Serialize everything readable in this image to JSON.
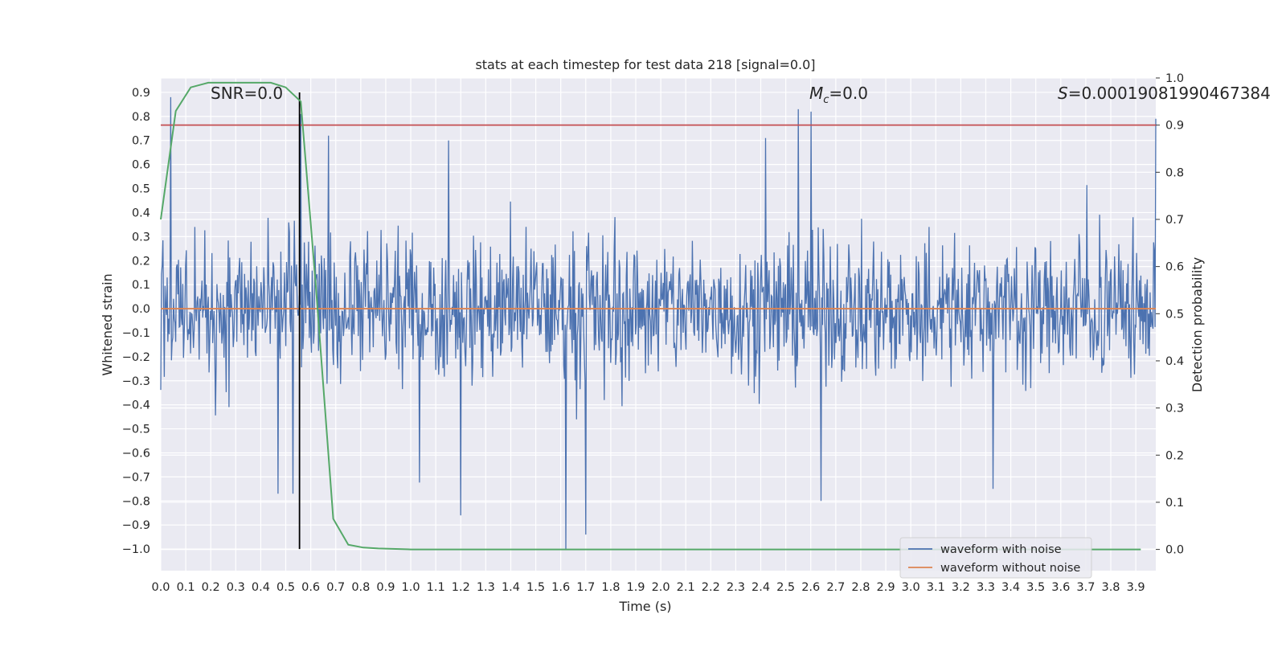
{
  "chart_data": {
    "type": "line",
    "title": "stats at each timestep for test data 218 [signal=0.0]",
    "xlabel": "Time (s)",
    "ylabel": "Whitened strain",
    "y2label": "Detection probability",
    "xlim": [
      0.0,
      3.98
    ],
    "ylim": [
      -1.09,
      0.96
    ],
    "y2lim": [
      -0.045,
      1.0
    ],
    "xticks": [
      "0.0",
      "0.1",
      "0.2",
      "0.3",
      "0.4",
      "0.5",
      "0.6",
      "0.7",
      "0.8",
      "0.9",
      "1.0",
      "1.1",
      "1.2",
      "1.3",
      "1.4",
      "1.5",
      "1.6",
      "1.7",
      "1.8",
      "1.9",
      "2.0",
      "2.1",
      "2.2",
      "2.3",
      "2.4",
      "2.5",
      "2.6",
      "2.7",
      "2.8",
      "2.9",
      "3.0",
      "3.1",
      "3.2",
      "3.3",
      "3.4",
      "3.5",
      "3.6",
      "3.7",
      "3.8",
      "3.9"
    ],
    "yticks": [
      "0.9",
      "0.8",
      "0.7",
      "0.6",
      "0.5",
      "0.4",
      "0.3",
      "0.2",
      "0.1",
      "0.0",
      "−0.1",
      "−0.2",
      "−0.3",
      "−0.4",
      "−0.5",
      "−0.6",
      "−0.7",
      "−0.8",
      "−0.9",
      "−1.0"
    ],
    "y2ticks": [
      "1.0",
      "0.9",
      "0.8",
      "0.7",
      "0.6",
      "0.5",
      "0.4",
      "0.3",
      "0.2",
      "0.1",
      "0.0"
    ],
    "grid": true,
    "legend_position": "lower-right",
    "annotations": {
      "snr": "SNR=0.0",
      "mc_symbol": "M",
      "mc_sub": "c",
      "mc_value": "=0.0",
      "s_symbol": "S",
      "s_value": "=0.00019081990467384"
    },
    "series": [
      {
        "name": "waveform with noise",
        "axis": "left",
        "color": "#4c72b0",
        "note": "dense noise trace; envelope approx ±0.25 with peaks from about -1.0 to 0.88",
        "approx_amplitude": 0.25,
        "peaks": [
          {
            "x": 0.04,
            "y": 0.88
          },
          {
            "x": 0.56,
            "y": 0.81
          },
          {
            "x": 0.67,
            "y": 0.72
          },
          {
            "x": 1.15,
            "y": 0.7
          },
          {
            "x": 2.42,
            "y": 0.71
          },
          {
            "x": 2.55,
            "y": 0.83
          },
          {
            "x": 2.6,
            "y": 0.82
          },
          {
            "x": 3.98,
            "y": 0.79
          },
          {
            "x": 0.47,
            "y": -0.77
          },
          {
            "x": 0.53,
            "y": -0.77
          },
          {
            "x": 1.2,
            "y": -0.86
          },
          {
            "x": 1.62,
            "y": -1.0
          },
          {
            "x": 1.7,
            "y": -0.94
          },
          {
            "x": 2.64,
            "y": -0.8
          },
          {
            "x": 3.33,
            "y": -0.75
          }
        ]
      },
      {
        "name": "waveform without noise",
        "axis": "left",
        "color": "#dd8452",
        "x": [
          0.0,
          3.98
        ],
        "y": [
          0.0,
          0.0
        ]
      },
      {
        "name": "",
        "axis": "right",
        "color": "#55a868",
        "x": [
          0.0,
          0.06,
          0.12,
          0.19,
          0.25,
          0.31,
          0.37,
          0.44,
          0.5,
          0.56,
          0.62,
          0.69,
          0.75,
          0.81,
          0.87,
          0.94,
          1.0,
          3.92
        ],
        "y": [
          0.7,
          0.93,
          0.98,
          0.99,
          0.99,
          0.99,
          0.99,
          0.99,
          0.98,
          0.95,
          0.56,
          0.065,
          0.01,
          0.004,
          0.002,
          0.001,
          0.0,
          0.0
        ]
      },
      {
        "name": "",
        "axis": "right",
        "color": "#c44e52",
        "style": "horizontal threshold",
        "y": 0.9
      },
      {
        "name": "",
        "axis": "left",
        "color": "#000000",
        "style": "vertical marker",
        "x": 0.555,
        "y_range": [
          -1.0,
          0.9
        ]
      }
    ]
  }
}
